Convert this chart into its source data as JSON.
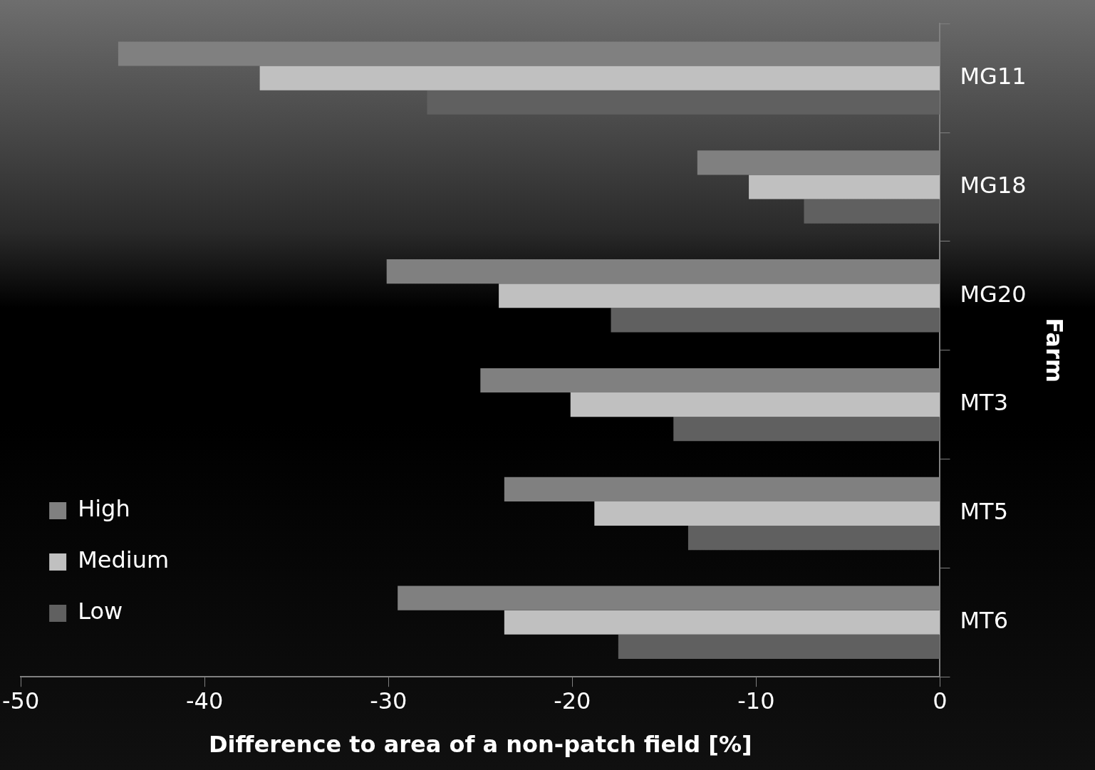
{
  "chart_data": {
    "type": "bar",
    "orientation": "horizontal",
    "xlabel": "Difference to area of a non-patch field [%]",
    "ylabel": "Farm",
    "categories": [
      "MG11",
      "MG18",
      "MG20",
      "MT3",
      "MT5",
      "MT6"
    ],
    "series": [
      {
        "name": "High",
        "color": "#808080",
        "values": [
          -44.7,
          -13.2,
          -30.1,
          -25.0,
          -23.7,
          -29.5
        ]
      },
      {
        "name": "Medium",
        "color": "#c0c0c0",
        "values": [
          -37.0,
          -10.4,
          -24.0,
          -20.1,
          -18.8,
          -23.7
        ]
      },
      {
        "name": "Low",
        "color": "#606060",
        "values": [
          -27.9,
          -7.4,
          -17.9,
          -14.5,
          -13.7,
          -17.5
        ]
      }
    ],
    "xlim": [
      -50,
      0
    ],
    "xticks": [
      -50,
      -40,
      -30,
      -20,
      -10,
      0
    ],
    "legend": "bottom left"
  }
}
